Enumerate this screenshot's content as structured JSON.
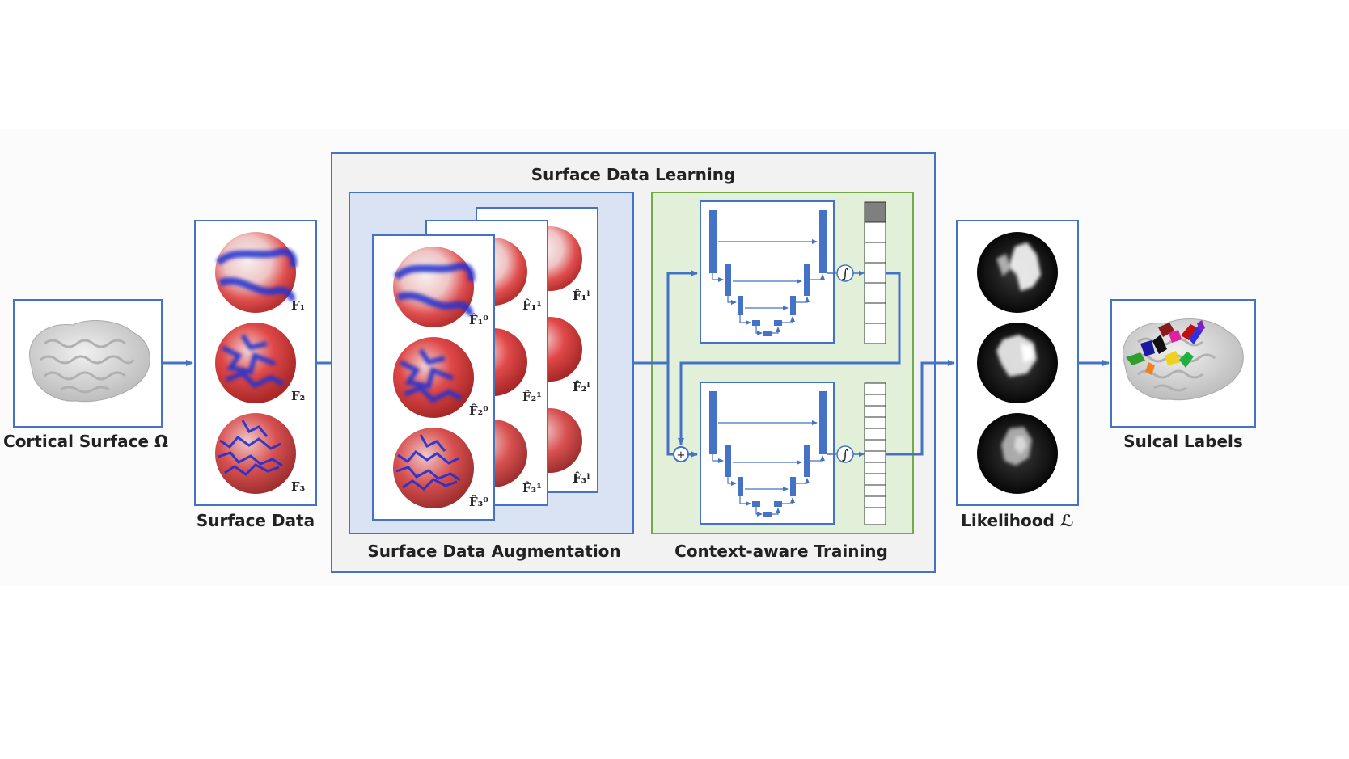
{
  "labels": {
    "cortical_surface": "Cortical Surface Ω",
    "surface_data": "Surface Data",
    "surface_data_learning": "Surface Data Learning",
    "surface_data_augmentation": "Surface Data Augmentation",
    "context_aware_training": "Context-aware Training",
    "likelihood": "Likelihood ℒ",
    "sulcal_labels": "Sulcal Labels"
  },
  "features": {
    "f1": "F₁",
    "f2": "F₂",
    "f3": "F₃"
  },
  "aug_front": [
    "F̂₁⁰",
    "F̂₂⁰",
    "F̂₃⁰"
  ],
  "aug_mid": [
    "F̂₁¹",
    "F̂₂¹",
    "F̂₃¹"
  ],
  "aug_back": [
    "F̂₁ˡ",
    "F̂₂ˡ",
    "F̂₃ˡ"
  ],
  "symbols": {
    "integral": "∫",
    "plus": "+"
  },
  "colors": {
    "accent_blue": "#4472c4",
    "learning_bg": "#f2f2f2",
    "augmentation_bg": "#dae3f3",
    "training_bg": "#e2efd9",
    "training_border": "#70ad47",
    "feature_red": "#e02020",
    "feature_blue": "#2030d0"
  }
}
